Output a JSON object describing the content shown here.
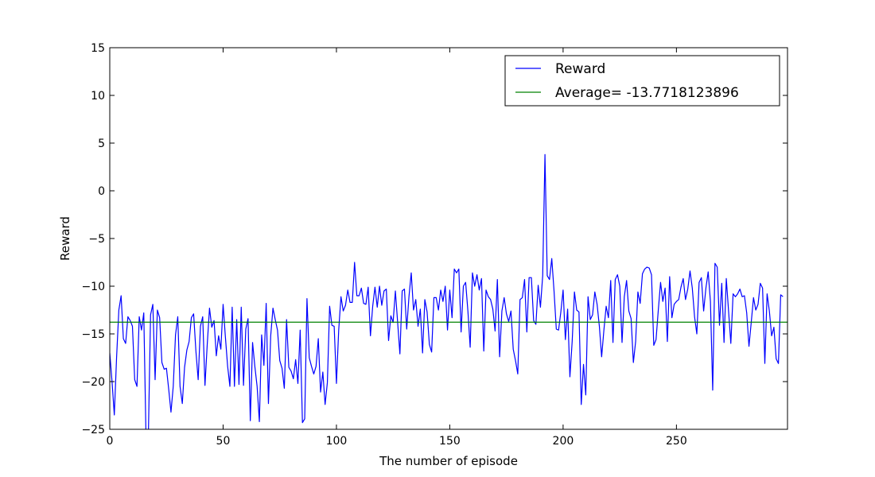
{
  "chart_data": {
    "type": "line",
    "title": "",
    "xlabel": "The number of episode",
    "ylabel": "Reward",
    "xlim": [
      0,
      299
    ],
    "ylim": [
      -25,
      15
    ],
    "xticks": [
      0,
      50,
      100,
      150,
      200,
      250
    ],
    "yticks": [
      -25,
      -20,
      -15,
      -10,
      -5,
      0,
      5,
      10,
      15
    ],
    "ytick_labels": [
      "−25",
      "−20",
      "−15",
      "−10",
      "−5",
      "0",
      "5",
      "10",
      "15"
    ],
    "grid": false,
    "legend_position": "top-right",
    "series": [
      {
        "name": "Reward",
        "color": "#0000ff",
        "values": [
          -17,
          -20,
          -23.5,
          -17.5,
          -12.5,
          -11,
          -15.5,
          -16,
          -13.2,
          -13.6,
          -14.2,
          -19.8,
          -20.5,
          -13.2,
          -14.6,
          -12.8,
          -26,
          -26,
          -13,
          -11.9,
          -19.8,
          -12.5,
          -13.3,
          -18,
          -18.7,
          -18.6,
          -20.8,
          -23.2,
          -20.5,
          -15.1,
          -13.2,
          -20.5,
          -22.3,
          -18.5,
          -16.7,
          -15.8,
          -13.3,
          -12.9,
          -16.8,
          -19.8,
          -14.2,
          -13.2,
          -20.4,
          -16.1,
          -12.3,
          -14.3,
          -13.6,
          -17.3,
          -15.2,
          -16.6,
          -11.9,
          -15.3,
          -18.4,
          -20.5,
          -12.2,
          -20.5,
          -13.5,
          -20.3,
          -12.2,
          -20.4,
          -14.5,
          -13.4,
          -24.1,
          -15.9,
          -18.4,
          -20.5,
          -24.2,
          -15.1,
          -18.3,
          -11.8,
          -22.3,
          -15.2,
          -12.3,
          -13.5,
          -14.6,
          -17.8,
          -18.6,
          -20.7,
          -13.5,
          -18.5,
          -18.9,
          -19.7,
          -17.7,
          -20.2,
          -14.6,
          -24.3,
          -23.9,
          -11.3,
          -17.5,
          -18.4,
          -19.2,
          -18.4,
          -15.5,
          -21.1,
          -19,
          -22.4,
          -20.1,
          -12.1,
          -14.1,
          -14.2,
          -20.2,
          -14.6,
          -11.1,
          -12.6,
          -12,
          -10.4,
          -11.7,
          -11.7,
          -7.5,
          -11,
          -11,
          -10.2,
          -11.8,
          -11.9,
          -10.1,
          -15.2,
          -12.1,
          -10.1,
          -12.2,
          -10,
          -12,
          -10.5,
          -10.3,
          -15.7,
          -13.1,
          -13.8,
          -10.5,
          -13.8,
          -17.1,
          -10.5,
          -10.3,
          -14.5,
          -11.1,
          -8.6,
          -12.5,
          -11.4,
          -14.2,
          -12.4,
          -17,
          -11.4,
          -12.7,
          -16.1,
          -16.9,
          -11.2,
          -11.2,
          -12.5,
          -10.4,
          -11.6,
          -10,
          -14.6,
          -10.4,
          -13.3,
          -8.2,
          -8.6,
          -8.2,
          -14.8,
          -10,
          -9.6,
          -12.6,
          -16.4,
          -8.6,
          -10,
          -8.8,
          -10.4,
          -9.2,
          -16.8,
          -10.4,
          -11.1,
          -11.4,
          -12.4,
          -14.7,
          -9.3,
          -17.4,
          -12.6,
          -11.2,
          -12.9,
          -13.7,
          -12.6,
          -16.6,
          -17.8,
          -19.2,
          -11.4,
          -11.2,
          -9.3,
          -14.8,
          -9.1,
          -9.1,
          -13.6,
          -14,
          -9.9,
          -12.2,
          -8.9,
          3.8,
          -8.9,
          -9.3,
          -7.1,
          -10.5,
          -14.5,
          -14.6,
          -12.7,
          -10.4,
          -15.6,
          -12.4,
          -19.5,
          -15.8,
          -10.6,
          -12.5,
          -12.7,
          -22.4,
          -18.2,
          -21.4,
          -11.1,
          -13.5,
          -13,
          -10.6,
          -11.9,
          -14.2,
          -17.4,
          -14.6,
          -12.1,
          -13.3,
          -9.4,
          -15.9,
          -9.3,
          -8.8,
          -10,
          -15.9,
          -11.1,
          -9.4,
          -12.6,
          -13.4,
          -18,
          -15.8,
          -10.6,
          -11.8,
          -8.7,
          -8.2,
          -8,
          -8.1,
          -8.8,
          -16.2,
          -15.6,
          -12.5,
          -9.6,
          -11.6,
          -10.2,
          -15.8,
          -9,
          -13.3,
          -11.9,
          -11.6,
          -11.4,
          -10.1,
          -9.2,
          -11.4,
          -10.3,
          -8.4,
          -10.2,
          -13.2,
          -15,
          -9.6,
          -9.1,
          -12.6,
          -10.2,
          -8.5,
          -11.6,
          -20.9,
          -7.6,
          -8,
          -14.1,
          -9.7,
          -15.9,
          -9.2,
          -12.6,
          -16,
          -10.8,
          -11.1,
          -10.8,
          -10.3,
          -11.1,
          -11,
          -12.8,
          -16.3,
          -13.8,
          -11.2,
          -12.5,
          -11.9,
          -9.7,
          -10.2,
          -18.1,
          -10.8,
          -12.6,
          -15.2,
          -14.3,
          -17.6,
          -18.1,
          -10.9,
          -11.1
        ]
      },
      {
        "name": "Average= -13.7718123896",
        "color": "#008000",
        "constant": -13.7718123896
      }
    ]
  }
}
